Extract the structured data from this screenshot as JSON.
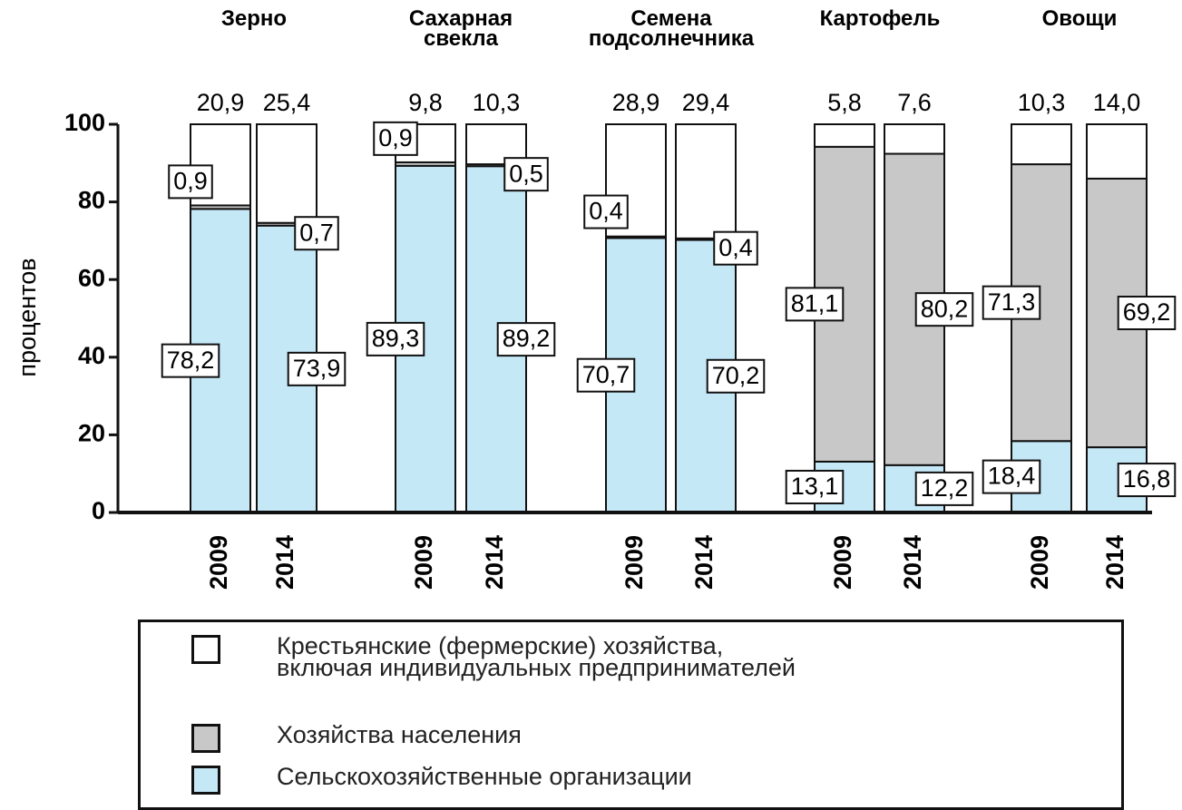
{
  "chart_data": {
    "type": "stacked_bar",
    "ylabel": "процентов",
    "groups": [
      "Зерно",
      "Сахарная\nсвекла",
      "Семена\nподсолнечника",
      "Картофель",
      "Овощи"
    ],
    "categories": [
      "2009",
      "2014",
      "2009",
      "2014",
      "2009",
      "2014",
      "2009",
      "2014",
      "2009",
      "2014"
    ],
    "series": [
      {
        "name": "Сельскохозяйственные организации",
        "color": "#c5e8f7",
        "values": [
          78.2,
          73.9,
          89.3,
          89.2,
          70.7,
          70.2,
          13.1,
          12.2,
          18.4,
          16.8
        ],
        "value_labels": [
          "78,2",
          "73,9",
          "89,3",
          "89,2",
          "70,7",
          "70,2",
          "13,1",
          "12,2",
          "18,4",
          "16,8"
        ]
      },
      {
        "name": "Хозяйства населения",
        "color": "#c8c8c8",
        "values": [
          0.9,
          0.7,
          0.9,
          0.5,
          0.4,
          0.4,
          81.1,
          80.2,
          71.3,
          69.2
        ],
        "value_labels": [
          "0,9",
          "0,7",
          "0,9",
          "0,5",
          "0,4",
          "0,4",
          "81,1",
          "80,2",
          "71,3",
          "69,2"
        ]
      },
      {
        "name": "Крестьянские (фермерские) хозяйства,\nвключая индивидуальных предпринимателей",
        "color": "#ffffff",
        "values": [
          20.9,
          25.4,
          9.8,
          10.3,
          28.9,
          29.4,
          5.8,
          7.6,
          10.3,
          14.0
        ],
        "value_labels": [
          "20,9",
          "25,4",
          "9,8",
          "10,3",
          "28,9",
          "29,4",
          "5,8",
          "7,6",
          "10,3",
          "14,0"
        ]
      }
    ],
    "ylim": [
      0,
      100
    ],
    "yticks": [
      0,
      20,
      40,
      60,
      80,
      100
    ]
  }
}
